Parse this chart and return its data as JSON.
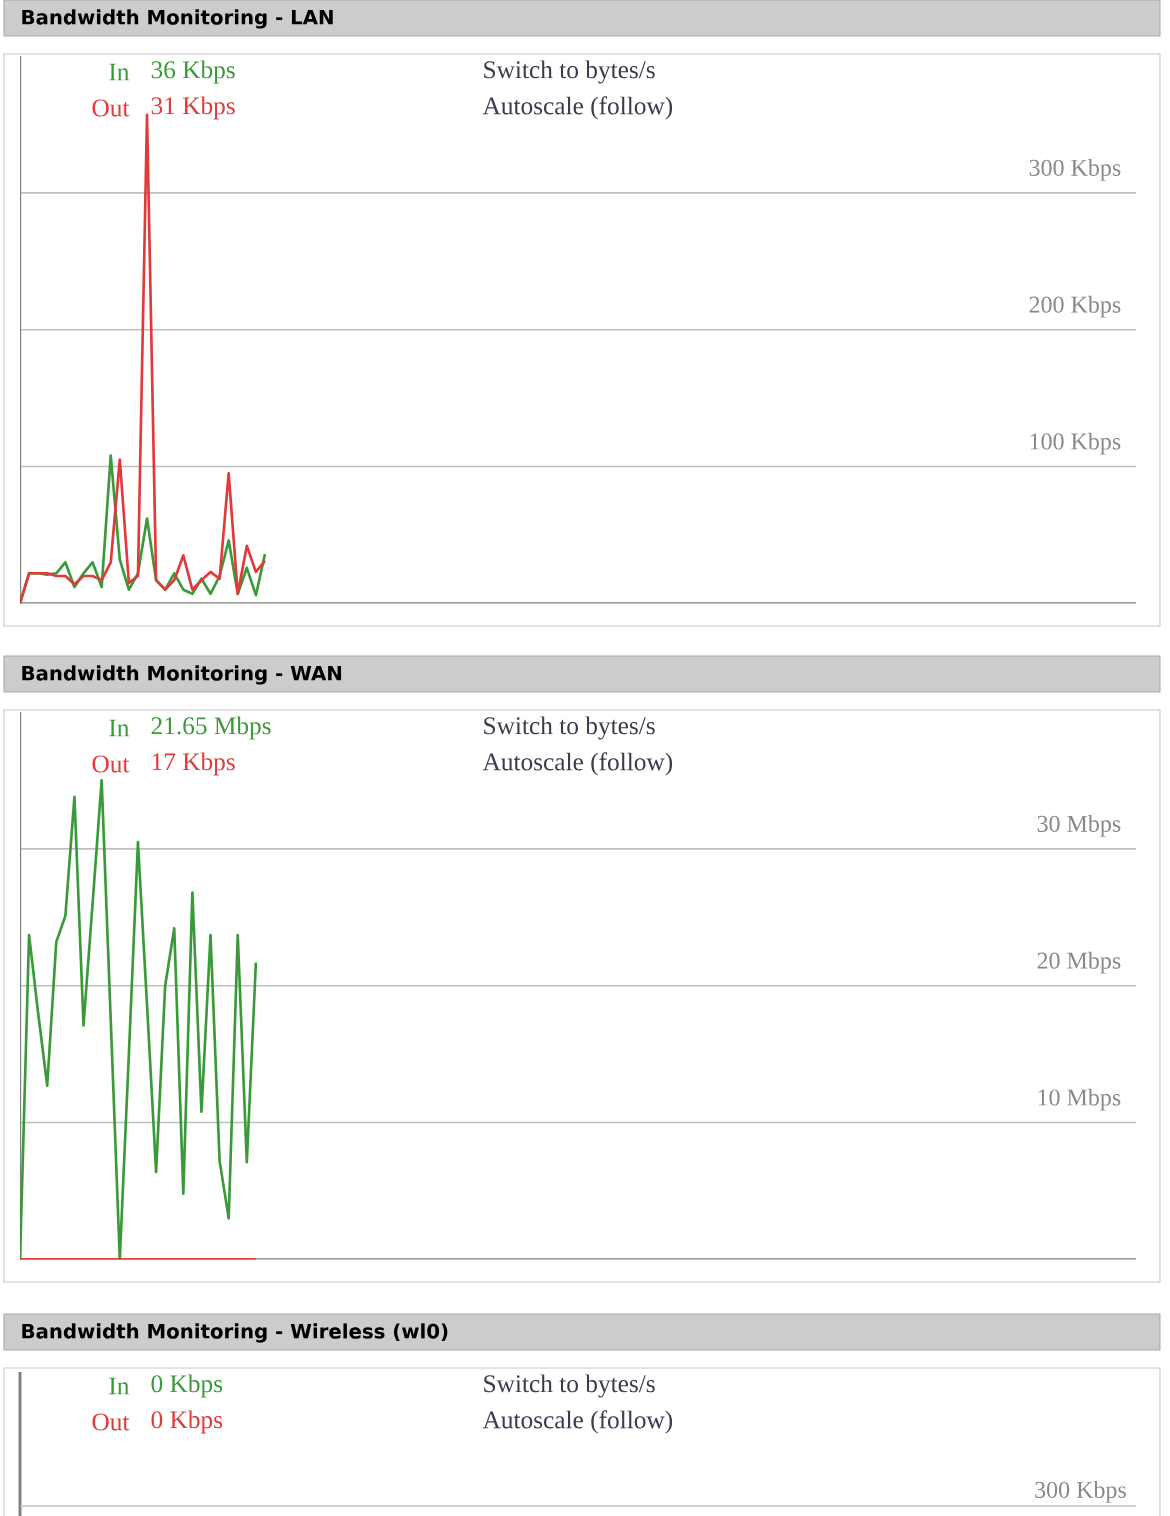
{
  "chart_data": [
    {
      "type": "line",
      "title": "Bandwidth Monitoring - LAN",
      "annotations": [
        "36 Kbps",
        "31 Kbps",
        "Switch to bytes/s",
        "Autoscale (follow)"
      ],
      "categories": [
        null,
        null,
        null,
        null,
        null,
        null,
        null,
        null,
        null,
        null,
        null,
        null,
        null,
        null,
        null,
        null,
        null,
        null,
        null,
        null,
        null,
        null,
        null,
        null,
        null,
        null,
        null,
        null,
        null,
        null,
        null,
        null,
        null,
        null,
        null,
        null,
        null,
        null,
        null,
        null,
        null,
        null,
        null,
        null,
        null,
        null,
        null,
        null,
        null,
        null,
        null,
        null,
        null,
        null,
        null,
        null,
        null,
        null,
        null,
        null,
        null,
        null,
        null,
        null,
        null,
        null,
        null,
        null,
        null,
        null,
        null,
        null,
        null,
        null,
        null,
        null,
        null,
        null,
        null,
        null,
        null,
        null,
        null,
        null,
        null,
        null,
        null,
        null,
        null,
        null,
        null,
        null,
        null,
        null,
        null,
        null,
        null,
        null,
        null,
        null,
        null,
        null,
        null,
        null,
        null,
        null,
        null,
        null,
        null,
        null,
        null,
        null,
        null,
        null,
        null,
        null,
        null,
        null,
        null,
        null,
        null,
        null,
        null,
        null
      ],
      "series": [
        {
          "name": "In",
          "color": "#3a9a3a",
          "values": [
            0,
            22,
            22,
            21,
            22,
            30,
            12,
            22,
            30,
            12,
            108,
            32,
            10,
            22,
            62,
            17,
            10,
            22,
            10,
            7,
            18,
            7,
            20,
            46,
            7,
            26,
            6,
            36,
            null,
            null,
            null,
            null,
            null,
            null,
            null,
            null,
            null,
            null,
            null,
            null,
            null,
            null,
            null,
            null,
            null,
            null,
            null,
            null,
            null,
            null,
            null,
            null,
            null,
            null,
            null,
            null,
            null,
            null,
            null,
            null,
            null,
            null,
            null,
            null,
            null,
            null,
            null,
            null,
            null,
            null,
            null,
            null,
            null,
            null,
            null,
            null,
            null,
            null,
            null,
            null,
            null,
            null,
            null,
            null,
            null,
            null,
            null,
            null,
            null,
            null,
            null,
            null,
            null,
            null,
            null,
            null,
            null,
            null,
            null,
            null,
            null,
            null,
            null,
            null,
            null,
            null,
            null,
            null,
            null,
            null,
            null,
            null,
            null,
            null,
            null,
            null,
            null,
            null,
            null,
            null,
            null,
            null,
            null,
            null
          ]
        },
        {
          "name": "Out",
          "color": "#e03a3a",
          "values": [
            0,
            22,
            22,
            22,
            20,
            20,
            14,
            20,
            20,
            17,
            30,
            105,
            15,
            20,
            357,
            17,
            10,
            17,
            35,
            10,
            17,
            23,
            18,
            95,
            7,
            42,
            23,
            31,
            null,
            null,
            null,
            null,
            null,
            null,
            null,
            null,
            null,
            null,
            null,
            null,
            null,
            null,
            null,
            null,
            null,
            null,
            null,
            null,
            null,
            null,
            null,
            null,
            null,
            null,
            null,
            null,
            null,
            null,
            null,
            null,
            null,
            null,
            null,
            null,
            null,
            null,
            null,
            null,
            null,
            null,
            null,
            null,
            null,
            null,
            null,
            null,
            null,
            null,
            null,
            null,
            null,
            null,
            null,
            null,
            null,
            null,
            null,
            null,
            null,
            null,
            null,
            null,
            null,
            null,
            null,
            null,
            null,
            null,
            null,
            null,
            null,
            null,
            null,
            null,
            null,
            null,
            null,
            null,
            null,
            null,
            null,
            null,
            null,
            null,
            null,
            null,
            null,
            null,
            null,
            null,
            null,
            null,
            null,
            null
          ]
        }
      ],
      "ylim": [
        0,
        400
      ],
      "yticks": [
        {
          "value": 100,
          "label": "100 Kbps"
        },
        {
          "value": 200,
          "label": "200 Kbps"
        },
        {
          "value": 300,
          "label": "300 Kbps"
        }
      ],
      "grid": "y",
      "legend": "top left"
    },
    {
      "type": "line",
      "title": "Bandwidth Monitoring - WAN",
      "annotations": [
        "21.65 Mbps",
        "17 Kbps",
        "Switch to bytes/s",
        "Autoscale (follow)"
      ],
      "categories": [
        null,
        null,
        null,
        null,
        null,
        null,
        null,
        null,
        null,
        null,
        null,
        null,
        null,
        null,
        null,
        null,
        null,
        null,
        null,
        null,
        null,
        null,
        null,
        null,
        null,
        null,
        null,
        null,
        null,
        null,
        null,
        null,
        null,
        null,
        null,
        null,
        null,
        null,
        null,
        null,
        null,
        null,
        null,
        null,
        null,
        null,
        null,
        null,
        null,
        null,
        null,
        null,
        null,
        null,
        null,
        null,
        null,
        null,
        null,
        null,
        null,
        null,
        null,
        null,
        null,
        null,
        null,
        null,
        null,
        null,
        null,
        null,
        null,
        null,
        null,
        null,
        null,
        null,
        null,
        null,
        null,
        null,
        null,
        null,
        null,
        null,
        null,
        null,
        null,
        null,
        null,
        null,
        null,
        null,
        null,
        null,
        null,
        null,
        null,
        null,
        null,
        null,
        null,
        null,
        null,
        null,
        null,
        null,
        null,
        null,
        null,
        null,
        null,
        null,
        null,
        null,
        null,
        null,
        null,
        null,
        null,
        null,
        null,
        null
      ],
      "series": [
        {
          "name": "In",
          "color": "#3a9a3a",
          "values": [
            0,
            23.7,
            18,
            12.7,
            23.2,
            25.1,
            33.8,
            17.1,
            26,
            35,
            17.5,
            0,
            15,
            30.5,
            18.6,
            6.4,
            20,
            24.2,
            4.8,
            26.8,
            10.8,
            23.7,
            7.2,
            3,
            23.7,
            7.1,
            21.7,
            null,
            null,
            null,
            null,
            null,
            null,
            null,
            null,
            null,
            null,
            null,
            null,
            null,
            null,
            null,
            null,
            null,
            null,
            null,
            null,
            null,
            null,
            null,
            null,
            null,
            null,
            null,
            null,
            null,
            null,
            null,
            null,
            null,
            null,
            null,
            null,
            null,
            null,
            null,
            null,
            null,
            null,
            null,
            null,
            null,
            null,
            null,
            null,
            null,
            null,
            null,
            null,
            null,
            null,
            null,
            null,
            null,
            null,
            null,
            null,
            null,
            null,
            null,
            null,
            null,
            null,
            null,
            null,
            null,
            null,
            null,
            null,
            null,
            null,
            null,
            null,
            null,
            null,
            null,
            null,
            null,
            null,
            null,
            null,
            null,
            null,
            null,
            null,
            null,
            null,
            null,
            null,
            null,
            null,
            null,
            null,
            null
          ]
        },
        {
          "name": "Out",
          "color": "#e03a3a",
          "values": [
            0,
            0,
            0,
            0,
            0,
            0,
            0,
            0,
            0,
            0,
            0,
            0,
            0,
            0,
            0,
            0,
            0,
            0,
            0,
            0,
            0,
            0,
            0,
            0,
            0,
            0,
            0,
            null,
            null,
            null,
            null,
            null,
            null,
            null,
            null,
            null,
            null,
            null,
            null,
            null,
            null,
            null,
            null,
            null,
            null,
            null,
            null,
            null,
            null,
            null,
            null,
            null,
            null,
            null,
            null,
            null,
            null,
            null,
            null,
            null,
            null,
            null,
            null,
            null,
            null,
            null,
            null,
            null,
            null,
            null,
            null,
            null,
            null,
            null,
            null,
            null,
            null,
            null,
            null,
            null,
            null,
            null,
            null,
            null,
            null,
            null,
            null,
            null,
            null,
            null,
            null,
            null,
            null,
            null,
            null,
            null,
            null,
            null,
            null,
            null,
            null,
            null,
            null,
            null,
            null,
            null,
            null,
            null,
            null,
            null,
            null,
            null,
            null,
            null,
            null,
            null,
            null,
            null,
            null,
            null,
            null,
            null,
            null,
            null
          ]
        }
      ],
      "ylim": [
        0,
        40
      ],
      "yticks": [
        {
          "value": 10,
          "label": "10 Mbps"
        },
        {
          "value": 20,
          "label": "20 Mbps"
        },
        {
          "value": 30,
          "label": "30 Mbps"
        }
      ],
      "grid": "y",
      "legend": "top left"
    },
    {
      "type": "other",
      "title": "Bandwidth Monitoring - Wireless (wl0)",
      "annotations": [
        "0 Kbps",
        "0 Kbps",
        "Switch to bytes/s",
        "Autoscale (follow)",
        "300 Kbps"
      ],
      "series": [
        {
          "name": "In",
          "color": "#3a9a3a"
        },
        {
          "name": "Out",
          "color": "#e03a3a"
        }
      ]
    }
  ]
}
